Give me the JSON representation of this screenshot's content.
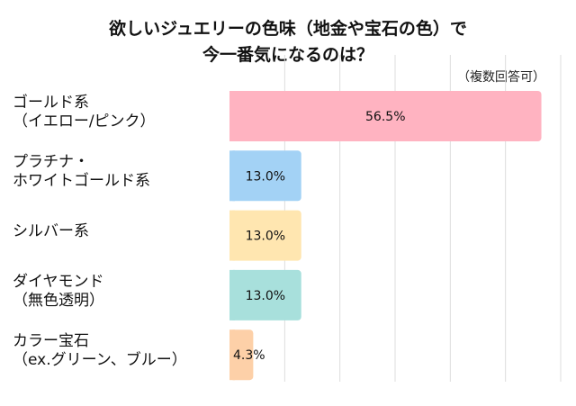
{
  "chart_data": {
    "type": "bar",
    "orientation": "horizontal",
    "title": [
      "欲しいジュエリーの色味（地金や宝石の色）で",
      "今一番気になるのは？"
    ],
    "note": "（複数回答可）",
    "categories": [
      "ゴールド系\n（イエロー/ピンク）",
      "プラチナ・\nホワイトゴールド系",
      "シルバー系",
      "ダイヤモンド\n（無色透明）",
      "カラー宝石\n（ex.グリーン、ブルー）"
    ],
    "values": [
      56.5,
      13.0,
      13.0,
      13.0,
      4.3
    ],
    "labels": [
      "56.5%",
      "13.0%",
      "13.0%",
      "13.0%",
      "4.3%"
    ],
    "colors": [
      "#ffb3c1",
      "#a3d2f5",
      "#ffe6b0",
      "#a8e0dc",
      "#fdd0a8"
    ],
    "xlim": [
      0,
      60
    ],
    "grid": true,
    "unit": "%"
  }
}
